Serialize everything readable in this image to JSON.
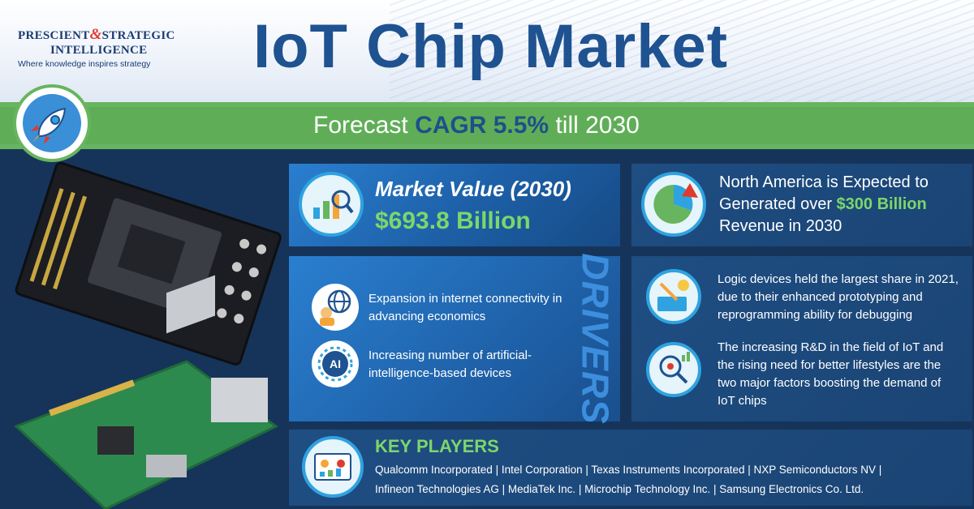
{
  "logo": {
    "line1_a": "PRESCIENT",
    "amp": "&",
    "line1_b": "STRATEGIC",
    "line2": "INTELLIGENCE",
    "tagline": "Where knowledge inspires strategy"
  },
  "title": "IoT Chip Market",
  "forecast": {
    "prefix": "Forecast",
    "highlight": "CAGR 5.5%",
    "suffix": "till 2030"
  },
  "market_value": {
    "label": "Market Value (2030)",
    "value": "$693.8 Billion"
  },
  "north_america": {
    "line1": "North America is Expected to",
    "line2_prefix": "Generated over",
    "line2_highlight": "$300 Billion",
    "line3": "Revenue in 2030"
  },
  "drivers": {
    "heading": "DRIVERS",
    "items": [
      {
        "icon": "global-connectivity-icon",
        "text": "Expansion in internet connectivity in advancing economics"
      },
      {
        "icon": "ai-chip-icon",
        "text": "Increasing number of artificial-intelligence-based devices"
      }
    ]
  },
  "insights": [
    {
      "icon": "prototyping-icon",
      "text": "Logic devices held the largest share in 2021, due to their enhanced prototyping and reprogramming ability for debugging"
    },
    {
      "icon": "research-icon",
      "text": "The increasing R&D in the field of IoT and the rising need for better lifestyles are the two major factors boosting the demand of IoT chips"
    }
  ],
  "key_players": {
    "heading": "KEY PLAYERS",
    "line1": "Qualcomm Incorporated | Intel Corporation | Texas Instruments Incorporated | NXP Semiconductors NV |",
    "line2": "Infineon Technologies AG | MediaTek Inc. | Microchip Technology Inc. | Samsung Electronics Co. Ltd."
  },
  "colors": {
    "title_blue": "#1f5290",
    "band_green": "#67b55e",
    "value_green": "#7cd66c",
    "card_blue": "#2a7fd0",
    "background": "#16345a"
  }
}
